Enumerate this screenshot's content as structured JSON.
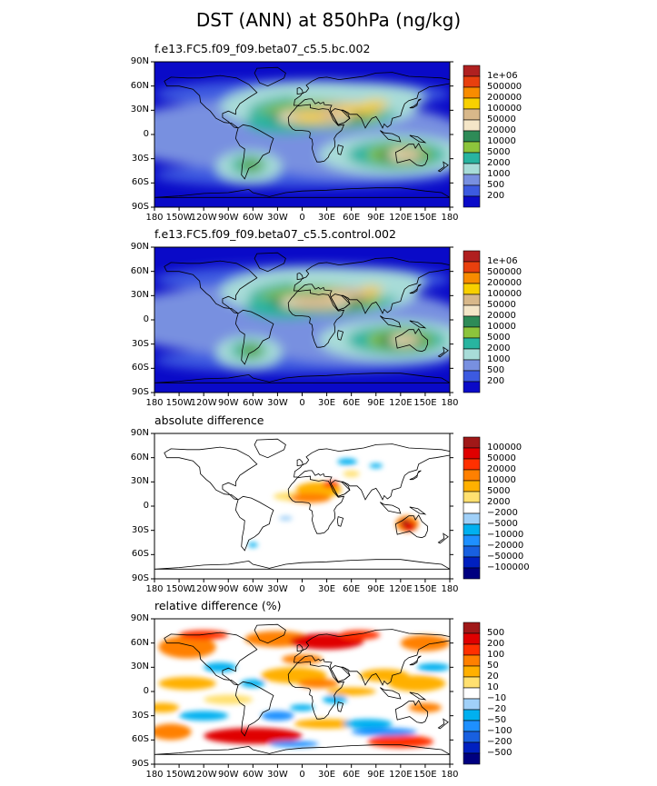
{
  "title": "DST (ANN) at 850hPa (ng/kg)",
  "chart_data": [
    {
      "type": "heatmap",
      "title": "f.e13.FC5.f09_f09.beta07_c5.5.bc.002",
      "lat_ticks": [
        "90N",
        "60N",
        "30N",
        "0",
        "30S",
        "60S",
        "90S"
      ],
      "lon_ticks": [
        "180",
        "150W",
        "120W",
        "90W",
        "60W",
        "30W",
        "0",
        "30E",
        "60E",
        "90E",
        "120E",
        "150E",
        "180"
      ],
      "levels": [
        "1e+06",
        "500000",
        "200000",
        "100000",
        "50000",
        "20000",
        "10000",
        "5000",
        "2000",
        "1000",
        "500",
        "200"
      ],
      "colors": [
        "#b02020",
        "#e8400e",
        "#f88c00",
        "#f8d000",
        "#d8b88a",
        "#f4e6c8",
        "#2e8b57",
        "#8cc43c",
        "#28b4a0",
        "#a8dcd8",
        "#7890e0",
        "#3c5ae0",
        "#0a0ac8"
      ]
    },
    {
      "type": "heatmap",
      "title": "f.e13.FC5.f09_f09.beta07_c5.5.control.002",
      "lat_ticks": [
        "90N",
        "60N",
        "30N",
        "0",
        "30S",
        "60S",
        "90S"
      ],
      "lon_ticks": [
        "180",
        "150W",
        "120W",
        "90W",
        "60W",
        "30W",
        "0",
        "30E",
        "60E",
        "90E",
        "120E",
        "150E",
        "180"
      ],
      "levels": [
        "1e+06",
        "500000",
        "200000",
        "100000",
        "50000",
        "20000",
        "10000",
        "5000",
        "2000",
        "1000",
        "500",
        "200"
      ],
      "colors": [
        "#b02020",
        "#e8400e",
        "#f88c00",
        "#f8d000",
        "#d8b88a",
        "#f4e6c8",
        "#2e8b57",
        "#8cc43c",
        "#28b4a0",
        "#a8dcd8",
        "#7890e0",
        "#3c5ae0",
        "#0a0ac8"
      ]
    },
    {
      "type": "heatmap",
      "title": "absolute difference",
      "lat_ticks": [
        "90N",
        "60N",
        "30N",
        "0",
        "30S",
        "60S",
        "90S"
      ],
      "lon_ticks": [
        "180",
        "150W",
        "120W",
        "90W",
        "60W",
        "30W",
        "0",
        "30E",
        "60E",
        "90E",
        "120E",
        "150E",
        "180"
      ],
      "levels": [
        "100000",
        "50000",
        "20000",
        "10000",
        "5000",
        "2000",
        "−2000",
        "−5000",
        "−10000",
        "−20000",
        "−50000",
        "−100000"
      ],
      "colors": [
        "#a01818",
        "#e00000",
        "#ff3000",
        "#ff8000",
        "#ffb000",
        "#ffe070",
        "#ffffff",
        "#a0d0f8",
        "#00b0f0",
        "#1e90ff",
        "#1860e0",
        "#0020c0",
        "#000080"
      ]
    },
    {
      "type": "heatmap",
      "title": "relative difference (%)",
      "lat_ticks": [
        "90N",
        "60N",
        "30N",
        "0",
        "30S",
        "60S",
        "90S"
      ],
      "lon_ticks": [
        "180",
        "150W",
        "120W",
        "90W",
        "60W",
        "30W",
        "0",
        "30E",
        "60E",
        "90E",
        "120E",
        "150E",
        "180"
      ],
      "levels": [
        "500",
        "200",
        "100",
        "50",
        "20",
        "10",
        "−10",
        "−20",
        "−50",
        "−100",
        "−200",
        "−500"
      ],
      "colors": [
        "#a01818",
        "#e00000",
        "#ff3000",
        "#ff8000",
        "#ffb000",
        "#ffe070",
        "#ffffff",
        "#a0d0f8",
        "#00b0f0",
        "#1e90ff",
        "#1860e0",
        "#0020c0",
        "#000080"
      ]
    }
  ]
}
